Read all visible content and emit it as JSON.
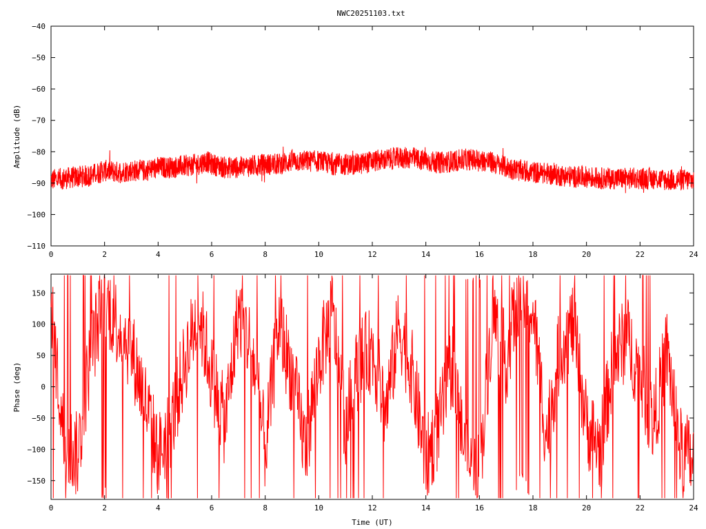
{
  "title": "NWC20251103.txt",
  "colors": {
    "series": "#ff0000",
    "axis": "#000000",
    "background": "#ffffff"
  },
  "chart_data": [
    {
      "type": "line",
      "name": "amplitude-panel",
      "ylabel": "Amplitude (dB)",
      "xlabel": "",
      "xlim": [
        0,
        24
      ],
      "ylim": [
        -110,
        -40
      ],
      "xticks": [
        0,
        2,
        4,
        6,
        8,
        10,
        12,
        14,
        16,
        18,
        20,
        22,
        24
      ],
      "yticks": [
        -40,
        -50,
        -60,
        -70,
        -80,
        -90,
        -100,
        -110
      ],
      "grid": false,
      "series": [
        {
          "color": "#ff0000",
          "x": [
            0,
            0.5,
            1,
            1.5,
            2,
            2.5,
            3,
            3.5,
            4,
            4.5,
            5,
            5.5,
            5.8,
            6,
            6.5,
            7,
            7.5,
            8,
            8.5,
            9,
            9.5,
            10,
            10.5,
            11,
            11.5,
            12,
            12.5,
            13,
            13.5,
            14,
            14.5,
            15,
            15.5,
            16,
            16.5,
            17,
            17.5,
            18,
            18.5,
            19,
            19.5,
            20,
            20.5,
            21,
            21.5,
            22,
            22.5,
            23,
            23.5,
            24
          ],
          "y": [
            -89,
            -88.5,
            -88,
            -87.5,
            -86,
            -86.5,
            -86,
            -86,
            -85,
            -85,
            -84.5,
            -84,
            -83,
            -84,
            -85,
            -85,
            -84.5,
            -84,
            -84,
            -83,
            -83,
            -83,
            -84,
            -84,
            -84,
            -83,
            -82.5,
            -82,
            -82,
            -83,
            -83.5,
            -83,
            -82.5,
            -82.5,
            -83.5,
            -85,
            -86,
            -86.5,
            -87,
            -87.5,
            -88,
            -88,
            -88.5,
            -88.5,
            -88.5,
            -88.5,
            -88.5,
            -89,
            -89,
            -89
          ],
          "spread_db": 3.5
        }
      ]
    },
    {
      "type": "line",
      "name": "phase-panel",
      "ylabel": "Phase (deg)",
      "xlabel": "Time (UT)",
      "xlim": [
        0,
        24
      ],
      "ylim": [
        -180,
        180
      ],
      "xticks": [
        0,
        2,
        4,
        6,
        8,
        10,
        12,
        14,
        16,
        18,
        20,
        22,
        24
      ],
      "yticks": [
        150,
        100,
        50,
        0,
        -50,
        -100,
        -150
      ],
      "grid": false,
      "series": [
        {
          "color": "#ff0000",
          "x": [
            0,
            0.5,
            1,
            1.5,
            2,
            2.5,
            3,
            3.5,
            4,
            4.5,
            5,
            5.5,
            6,
            6.5,
            7,
            7.5,
            8,
            8.5,
            9,
            9.5,
            10,
            10.5,
            11,
            11.5,
            12,
            12.5,
            13,
            13.5,
            14,
            14.5,
            15,
            15.5,
            16,
            16.5,
            17,
            17.5,
            18,
            18.5,
            19,
            19.5,
            20,
            20.5,
            21,
            21.5,
            22,
            22.5,
            23,
            23.5,
            24
          ],
          "y": [
            120,
            -90,
            -110,
            60,
            140,
            100,
            60,
            -20,
            -110,
            -60,
            40,
            120,
            20,
            -60,
            120,
            60,
            -100,
            100,
            20,
            -100,
            40,
            120,
            -60,
            40,
            60,
            -40,
            100,
            20,
            -120,
            -60,
            40,
            -120,
            -140,
            120,
            40,
            160,
            120,
            -80,
            60,
            100,
            -60,
            -100,
            40,
            80,
            20,
            -60,
            60,
            -100,
            -120
          ]
        }
      ]
    }
  ]
}
